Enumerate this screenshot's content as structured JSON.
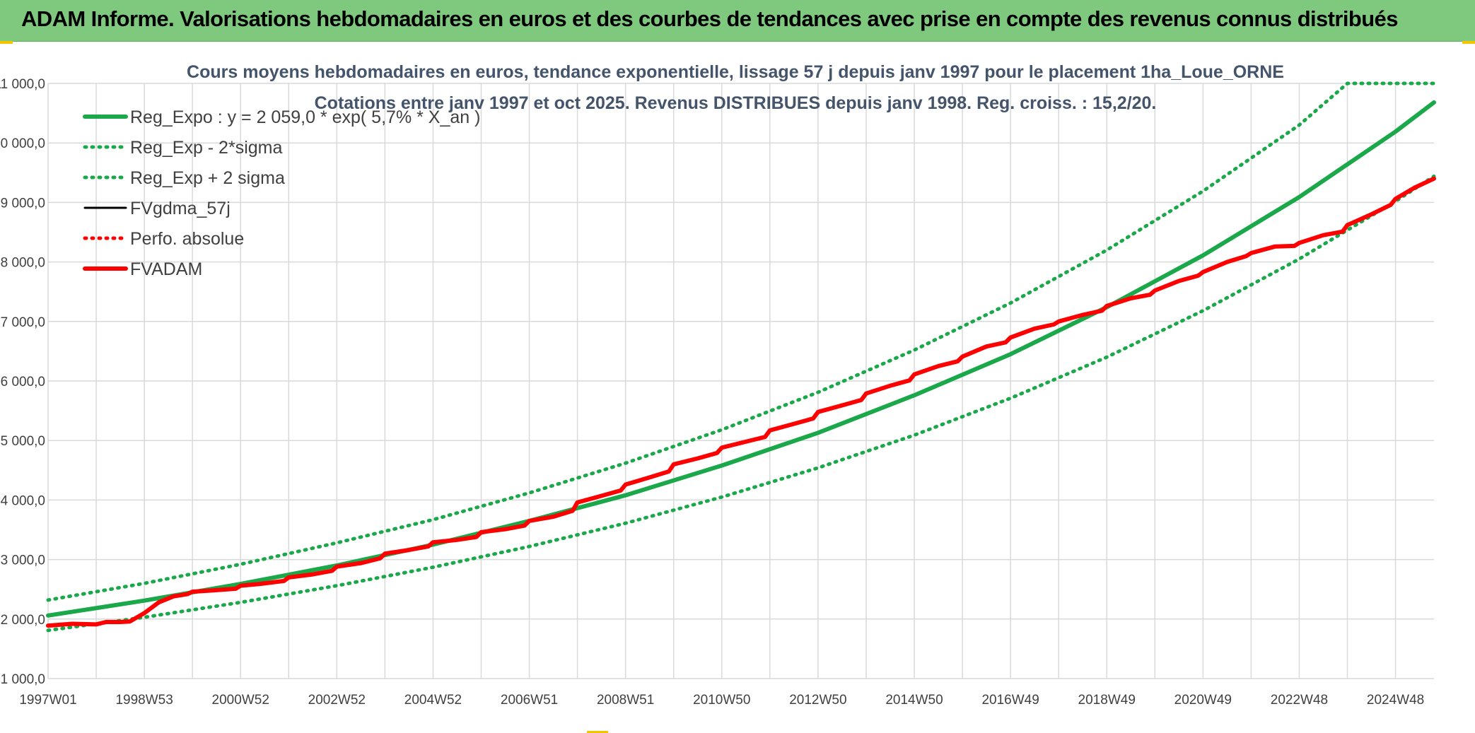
{
  "page": {
    "banner_title": "ADAM Informe. Valorisations hebdomadaires en euros et des courbes de tendances avec prise en compte des revenus connus distribués"
  },
  "colors": {
    "banner": "#7fc97f",
    "reg_expo": "#1aa84a",
    "fvadam": "#ff0000",
    "fvgdma": "#000000",
    "grid": "#d9d9d9",
    "title": "#44546a"
  },
  "chart_data": {
    "type": "line",
    "title": "Cours moyens hebdomadaires en euros, tendance exponentielle, lissage 57 j depuis janv 1997 pour le placement 1ha_Loue_ORNE",
    "subtitle": "Cotations entre janv 1997 et oct 2025. Revenus DISTRIBUES depuis janv 1998. Reg. croiss. : 15,2/20.",
    "xlabel": "",
    "ylabel": "",
    "ylim": [
      1000,
      11000
    ],
    "yticks": [
      "1 000,0",
      "2 000,0",
      "3 000,0",
      "4 000,0",
      "5 000,0",
      "6 000,0",
      "7 000,0",
      "8 000,0",
      "9 000,0",
      "10 000,0",
      "11 000,0"
    ],
    "xlim": [
      1997.0,
      2025.8
    ],
    "xticks": [
      {
        "label": "1997W01",
        "x": 1997.0
      },
      {
        "label": "1998W53",
        "x": 1999.0
      },
      {
        "label": "2000W52",
        "x": 2001.0
      },
      {
        "label": "2002W52",
        "x": 2003.0
      },
      {
        "label": "2004W52",
        "x": 2005.0
      },
      {
        "label": "2006W51",
        "x": 2007.0
      },
      {
        "label": "2008W51",
        "x": 2009.0
      },
      {
        "label": "2010W50",
        "x": 2011.0
      },
      {
        "label": "2012W50",
        "x": 2013.0
      },
      {
        "label": "2014W50",
        "x": 2015.0
      },
      {
        "label": "2016W49",
        "x": 2017.0
      },
      {
        "label": "2018W49",
        "x": 2019.0
      },
      {
        "label": "2020W49",
        "x": 2021.0
      },
      {
        "label": "2022W48",
        "x": 2023.0
      },
      {
        "label": "2024W48",
        "x": 2025.0
      }
    ],
    "grid": true,
    "legend_position": "top-left",
    "series": [
      {
        "name": "Reg_Expo : y = 2 059,0 * exp( 5,7% *  X_an )",
        "style": "solid",
        "color": "#1aa84a",
        "x": [
          1997,
          1999,
          2001,
          2003,
          2005,
          2007,
          2009,
          2011,
          2013,
          2015,
          2017,
          2019,
          2021,
          2023,
          2025,
          2025.8
        ],
        "values": [
          2059,
          2310,
          2590,
          2900,
          3250,
          3650,
          4080,
          4580,
          5130,
          5760,
          6450,
          7240,
          8110,
          9090,
          10190,
          10680
        ]
      },
      {
        "name": "Reg_Exp - 2*sigma",
        "style": "dotted",
        "color": "#1aa84a",
        "x": [
          1997,
          1999,
          2001,
          2003,
          2005,
          2007,
          2009,
          2011,
          2013,
          2015,
          2017,
          2019,
          2021,
          2023,
          2025,
          2025.8
        ],
        "values": [
          1810,
          2030,
          2280,
          2560,
          2870,
          3220,
          3610,
          4050,
          4540,
          5090,
          5710,
          6400,
          7180,
          8050,
          9020,
          9440
        ]
      },
      {
        "name": "Reg_Exp + 2 sigma",
        "style": "dotted",
        "color": "#1aa84a",
        "x": [
          1997,
          1999,
          2001,
          2003,
          2005,
          2007,
          2009,
          2011,
          2013,
          2015,
          2017,
          2019,
          2021,
          2023,
          2024.0,
          2025.8
        ],
        "values": [
          2320,
          2600,
          2920,
          3280,
          3670,
          4120,
          4620,
          5180,
          5810,
          6520,
          7310,
          8200,
          9190,
          10300,
          11000,
          11000
        ]
      },
      {
        "name": "FVgdma_57j",
        "style": "solid",
        "color": "#000000",
        "x": [
          1997,
          1997.5,
          1998.0,
          1998.2,
          1998.5,
          1998.7,
          1999.0,
          1999.3,
          1999.6,
          1999.9,
          2000.0,
          2000.4,
          2000.9,
          2001.0,
          2001.4,
          2001.9,
          2002.0,
          2002.5,
          2002.9,
          2003.0,
          2003.5,
          2003.9,
          2004.0,
          2004.5,
          2004.9,
          2005.0,
          2005.5,
          2005.9,
          2006.0,
          2006.5,
          2006.9,
          2007.0,
          2007.5,
          2007.9,
          2008.0,
          2008.5,
          2008.9,
          2009.0,
          2009.5,
          2009.9,
          2010.0,
          2010.5,
          2010.9,
          2011.0,
          2011.5,
          2011.9,
          2012.0,
          2012.5,
          2012.9,
          2013.0,
          2013.5,
          2013.9,
          2014.0,
          2014.5,
          2014.9,
          2015.0,
          2015.5,
          2015.9,
          2016.0,
          2016.5,
          2016.9,
          2017.0,
          2017.5,
          2017.9,
          2018.0,
          2018.5,
          2018.9,
          2019.0,
          2019.5,
          2019.9,
          2020.0,
          2020.5,
          2020.9,
          2021.0,
          2021.5,
          2021.9,
          2022.0,
          2022.5,
          2022.9,
          2023.0,
          2023.5,
          2023.9,
          2024.0,
          2024.5,
          2024.9,
          2025.0,
          2025.4,
          2025.8
        ],
        "values": [
          1890,
          1920,
          1910,
          1950,
          1950,
          1960,
          2100,
          2280,
          2380,
          2420,
          2460,
          2480,
          2510,
          2560,
          2590,
          2640,
          2700,
          2750,
          2810,
          2880,
          2940,
          3020,
          3100,
          3160,
          3220,
          3290,
          3330,
          3380,
          3460,
          3510,
          3570,
          3650,
          3720,
          3820,
          3960,
          4070,
          4160,
          4260,
          4380,
          4480,
          4600,
          4700,
          4790,
          4880,
          4980,
          5060,
          5170,
          5280,
          5370,
          5480,
          5590,
          5680,
          5790,
          5920,
          6010,
          6110,
          6250,
          6330,
          6410,
          6580,
          6650,
          6730,
          6880,
          6950,
          7000,
          7110,
          7180,
          7260,
          7390,
          7450,
          7520,
          7680,
          7770,
          7830,
          8000,
          8100,
          8150,
          8260,
          8270,
          8320,
          8450,
          8510,
          8620,
          8800,
          8960,
          9060,
          9250,
          9400
        ]
      },
      {
        "name": "Perfo. absolue",
        "style": "dotted",
        "color": "#ff0000",
        "x": [
          1997,
          1997.5,
          1998.0,
          1998.2,
          1998.5,
          1998.7,
          1999.0,
          1999.3,
          1999.6,
          1999.9,
          2000.0,
          2000.4,
          2000.9,
          2001.0,
          2001.4,
          2001.9,
          2002.0,
          2002.5,
          2002.9,
          2003.0,
          2003.5,
          2003.9,
          2004.0,
          2004.5,
          2004.9,
          2005.0,
          2005.5,
          2005.9,
          2006.0,
          2006.5,
          2006.9,
          2007.0,
          2007.5,
          2007.9,
          2008.0,
          2008.5,
          2008.9,
          2009.0,
          2009.5,
          2009.9,
          2010.0,
          2010.5,
          2010.9,
          2011.0,
          2011.5,
          2011.9,
          2012.0,
          2012.5,
          2012.9,
          2013.0,
          2013.5,
          2013.9,
          2014.0,
          2014.5,
          2014.9,
          2015.0,
          2015.5,
          2015.9,
          2016.0,
          2016.5,
          2016.9,
          2017.0,
          2017.5,
          2017.9,
          2018.0,
          2018.5,
          2018.9,
          2019.0,
          2019.5,
          2019.9,
          2020.0,
          2020.5,
          2020.9,
          2021.0,
          2021.5,
          2021.9,
          2022.0,
          2022.5,
          2022.9,
          2023.0,
          2023.5,
          2023.9,
          2024.0,
          2024.5,
          2024.9,
          2025.0,
          2025.4,
          2025.8
        ],
        "values": [
          1890,
          1920,
          1910,
          1950,
          1950,
          1960,
          2100,
          2280,
          2380,
          2420,
          2460,
          2480,
          2510,
          2560,
          2590,
          2640,
          2700,
          2750,
          2810,
          2880,
          2940,
          3020,
          3100,
          3160,
          3220,
          3290,
          3330,
          3380,
          3460,
          3510,
          3570,
          3650,
          3720,
          3820,
          3960,
          4070,
          4160,
          4260,
          4380,
          4480,
          4600,
          4700,
          4790,
          4880,
          4980,
          5060,
          5170,
          5280,
          5370,
          5480,
          5590,
          5680,
          5790,
          5920,
          6010,
          6110,
          6250,
          6330,
          6410,
          6580,
          6650,
          6730,
          6880,
          6950,
          7000,
          7110,
          7180,
          7260,
          7390,
          7450,
          7520,
          7680,
          7770,
          7830,
          8000,
          8100,
          8150,
          8260,
          8270,
          8320,
          8450,
          8510,
          8620,
          8800,
          8960,
          9060,
          9250,
          9400
        ]
      },
      {
        "name": "FVADAM",
        "style": "solid-thick",
        "color": "#ff0000",
        "x": [
          1997,
          1997.5,
          1998.0,
          1998.2,
          1998.5,
          1998.7,
          1999.0,
          1999.3,
          1999.6,
          1999.9,
          2000.0,
          2000.4,
          2000.9,
          2001.0,
          2001.4,
          2001.9,
          2002.0,
          2002.5,
          2002.9,
          2003.0,
          2003.5,
          2003.9,
          2004.0,
          2004.5,
          2004.9,
          2005.0,
          2005.5,
          2005.9,
          2006.0,
          2006.5,
          2006.9,
          2007.0,
          2007.5,
          2007.9,
          2008.0,
          2008.5,
          2008.9,
          2009.0,
          2009.5,
          2009.9,
          2010.0,
          2010.5,
          2010.9,
          2011.0,
          2011.5,
          2011.9,
          2012.0,
          2012.5,
          2012.9,
          2013.0,
          2013.5,
          2013.9,
          2014.0,
          2014.5,
          2014.9,
          2015.0,
          2015.5,
          2015.9,
          2016.0,
          2016.5,
          2016.9,
          2017.0,
          2017.5,
          2017.9,
          2018.0,
          2018.5,
          2018.9,
          2019.0,
          2019.5,
          2019.9,
          2020.0,
          2020.5,
          2020.9,
          2021.0,
          2021.5,
          2021.9,
          2022.0,
          2022.5,
          2022.9,
          2023.0,
          2023.5,
          2023.9,
          2024.0,
          2024.5,
          2024.9,
          2025.0,
          2025.4,
          2025.8
        ],
        "values": [
          1890,
          1920,
          1910,
          1950,
          1950,
          1960,
          2100,
          2280,
          2380,
          2420,
          2460,
          2480,
          2510,
          2560,
          2590,
          2640,
          2700,
          2750,
          2810,
          2880,
          2940,
          3020,
          3100,
          3160,
          3220,
          3290,
          3330,
          3380,
          3460,
          3510,
          3570,
          3650,
          3720,
          3820,
          3960,
          4070,
          4160,
          4260,
          4380,
          4480,
          4600,
          4700,
          4790,
          4880,
          4980,
          5060,
          5170,
          5280,
          5370,
          5480,
          5590,
          5680,
          5790,
          5920,
          6010,
          6110,
          6250,
          6330,
          6410,
          6580,
          6650,
          6730,
          6880,
          6950,
          7000,
          7110,
          7180,
          7260,
          7390,
          7450,
          7520,
          7680,
          7770,
          7830,
          8000,
          8100,
          8150,
          8260,
          8270,
          8320,
          8450,
          8510,
          8620,
          8800,
          8960,
          9060,
          9250,
          9400
        ]
      }
    ]
  }
}
